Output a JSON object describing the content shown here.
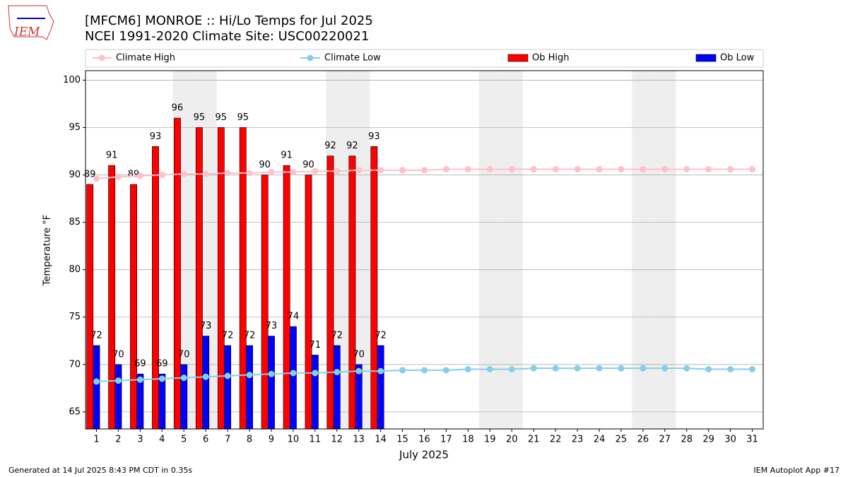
{
  "logo": "IEM",
  "footer": {
    "left": "Generated at 14 Jul 2025 8:43 PM CDT in 0.35s",
    "right": "IEM Autoplot App #17"
  },
  "chart_data": {
    "type": "bar",
    "title": "[MFCM6] MONROE :: Hi/Lo Temps for Jul 2025",
    "subtitle": "NCEI 1991-2020 Climate Site: USC00220021",
    "x_label": "July 2025",
    "y_label": "Temperature °F",
    "x": [
      1,
      2,
      3,
      4,
      5,
      6,
      7,
      8,
      9,
      10,
      11,
      12,
      13,
      14,
      15,
      16,
      17,
      18,
      19,
      20,
      21,
      22,
      23,
      24,
      25,
      26,
      27,
      28,
      29,
      30,
      31
    ],
    "xlim": [
      0.5,
      31.5
    ],
    "xticks": [
      1,
      2,
      3,
      4,
      5,
      6,
      7,
      8,
      9,
      10,
      11,
      12,
      13,
      14,
      15,
      16,
      17,
      18,
      19,
      20,
      21,
      22,
      23,
      24,
      25,
      26,
      27,
      28,
      29,
      30,
      31
    ],
    "ylim": [
      63.2,
      101
    ],
    "yticks": [
      65,
      70,
      75,
      80,
      85,
      90,
      95,
      100
    ],
    "grid": true,
    "shaded_days": [
      5,
      6,
      12,
      13,
      19,
      20,
      26,
      27
    ],
    "shade_color": "#eeeeee",
    "legend": "top",
    "series": [
      {
        "name": "Climate High",
        "type": "line",
        "color": "#ffc0cb",
        "values": [
          89.6,
          89.8,
          89.9,
          90.0,
          90.1,
          90.1,
          90.2,
          90.2,
          90.3,
          90.3,
          90.4,
          90.4,
          90.5,
          90.5,
          90.5,
          90.5,
          90.6,
          90.6,
          90.6,
          90.6,
          90.6,
          90.6,
          90.6,
          90.6,
          90.6,
          90.6,
          90.6,
          90.6,
          90.6,
          90.6,
          90.6
        ]
      },
      {
        "name": "Climate Low",
        "type": "line",
        "color": "#87ceeb",
        "values": [
          68.2,
          68.3,
          68.4,
          68.5,
          68.6,
          68.7,
          68.8,
          68.9,
          69.0,
          69.1,
          69.1,
          69.2,
          69.3,
          69.3,
          69.4,
          69.4,
          69.4,
          69.5,
          69.5,
          69.5,
          69.6,
          69.6,
          69.6,
          69.6,
          69.6,
          69.6,
          69.6,
          69.6,
          69.5,
          69.5,
          69.5
        ]
      },
      {
        "name": "Ob High",
        "type": "bar",
        "color": "#ff0000",
        "values": [
          89,
          91,
          89,
          93,
          96,
          95,
          95,
          95,
          90,
          91,
          90,
          92,
          92,
          93,
          null,
          null,
          null,
          null,
          null,
          null,
          null,
          null,
          null,
          null,
          null,
          null,
          null,
          null,
          null,
          null,
          null
        ]
      },
      {
        "name": "Ob Low",
        "type": "bar",
        "color": "#0000ff",
        "values": [
          72,
          70,
          69,
          69,
          70,
          73,
          72,
          72,
          73,
          74,
          71,
          72,
          70,
          72,
          null,
          null,
          null,
          null,
          null,
          null,
          null,
          null,
          null,
          null,
          null,
          null,
          null,
          null,
          null,
          null,
          null
        ]
      }
    ]
  }
}
